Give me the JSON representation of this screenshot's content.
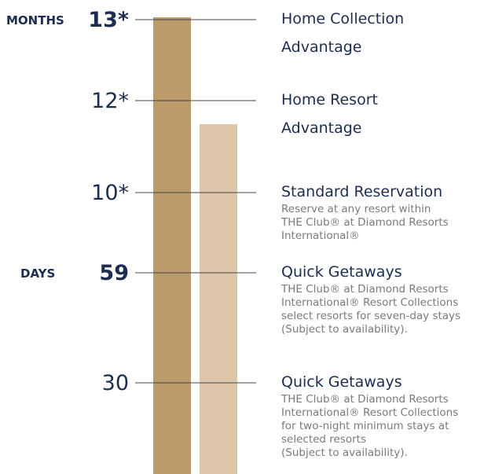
{
  "levels": [
    {
      "unit": "MONTHS",
      "label": "13*",
      "title": [
        "Home Collection",
        "Advantage"
      ],
      "description": []
    },
    {
      "label": "12*",
      "title": [
        "Home Resort",
        "Advantage"
      ],
      "description": []
    },
    {
      "label": "10*",
      "title": [
        "Standard Reservation"
      ],
      "description": [
        "Reserve at any resort within",
        "THE Club® at Diamond Resorts",
        "International®"
      ]
    },
    {
      "unit": "DAYS",
      "label": "59",
      "title": [
        "Quick Getaways"
      ],
      "description": [
        "THE Club® at Diamond Resorts",
        "International® Resort Collections",
        "select resorts for seven-day stays",
        "(Subject to availability)."
      ]
    },
    {
      "label": "30",
      "title": [
        "Quick Getaways"
      ],
      "description": [
        "THE Club® at Diamond Resorts",
        "International® Resort Collections",
        "for two-night minimum stays at",
        "selected resorts",
        "(Subject to availability)."
      ]
    }
  ]
}
